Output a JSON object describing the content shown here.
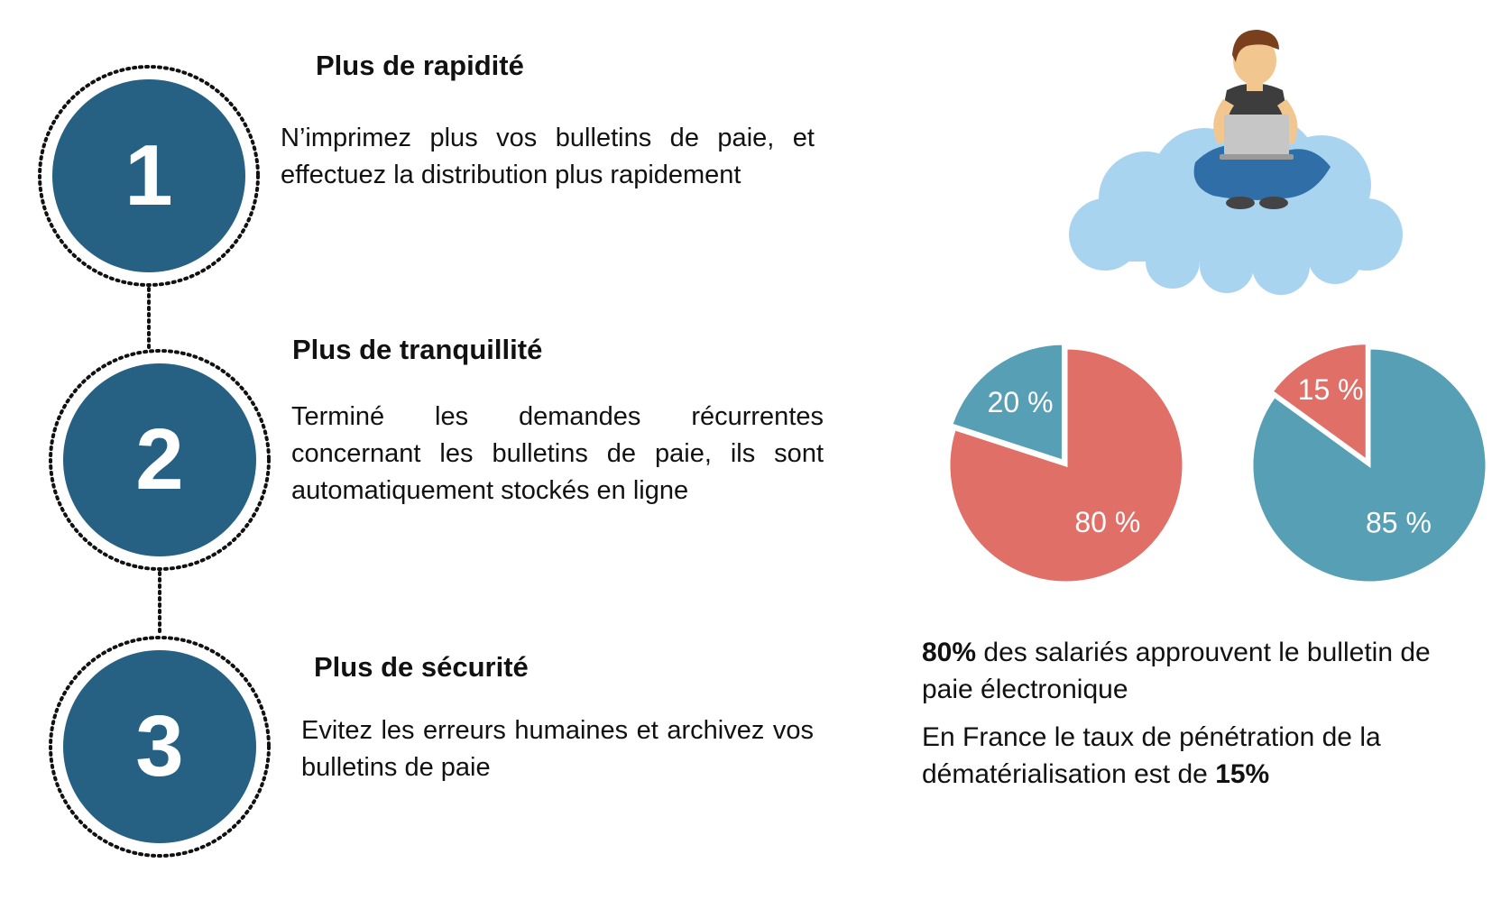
{
  "colors": {
    "step_circle": "#266184",
    "dotted_ring": "#111111",
    "pie_red": "#e06f67",
    "pie_teal": "#579fb4",
    "cloud": "#a8d4f0"
  },
  "icons": {
    "illustration": "person-with-laptop-on-cloud-icon"
  },
  "steps": [
    {
      "number": "1",
      "title": "Plus de rapidité",
      "text": "N’imprimez plus vos bulletins de paie, et effectuez la distribution plus rapidement"
    },
    {
      "number": "2",
      "title": "Plus de tranquillité",
      "text": "Terminé les demandes récurrentes concernant les bulletins de paie, ils sont automatiquement stockés en ligne"
    },
    {
      "number": "3",
      "title": "Plus de sécurité",
      "text": "Evitez les erreurs humaines et archivez vos bulletins de paie"
    }
  ],
  "chart_data": [
    {
      "type": "pie",
      "slices": [
        {
          "label": "20 %",
          "value": 20,
          "color": "#579fb4"
        },
        {
          "label": "80 %",
          "value": 80,
          "color": "#e06f67"
        }
      ]
    },
    {
      "type": "pie",
      "slices": [
        {
          "label": "15 %",
          "value": 15,
          "color": "#e06f67"
        },
        {
          "label": "85 %",
          "value": 85,
          "color": "#579fb4"
        }
      ]
    }
  ],
  "stats": {
    "line1_bold": "80%",
    "line1_rest": " des salariés approuvent le bulletin de paie électronique",
    "line2_text": "En France le taux de pénétration de la dématérialisation est de ",
    "line2_bold": "15%"
  }
}
